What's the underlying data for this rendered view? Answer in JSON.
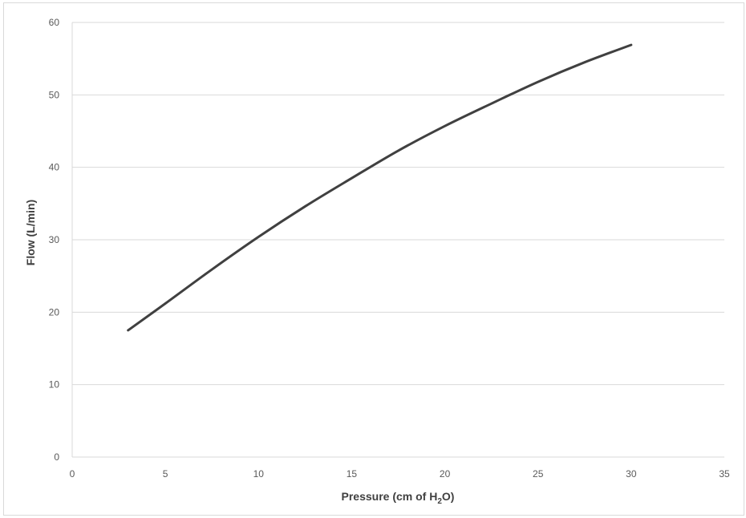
{
  "chart_data": {
    "type": "line",
    "xlabel": "Pressure (cm of H",
    "xlabel_sub": "2",
    "xlabel_end": "O)",
    "ylabel": "Flow (L/min)",
    "xlim": [
      0,
      35
    ],
    "ylim": [
      0,
      60
    ],
    "x_ticks": [
      0,
      5,
      10,
      15,
      20,
      25,
      30,
      35
    ],
    "y_ticks": [
      0,
      10,
      20,
      30,
      40,
      50,
      60
    ],
    "grid": "horizontal",
    "legend": "none",
    "series": [
      {
        "color": "#404040",
        "x": [
          3,
          5,
          7.5,
          10,
          12.5,
          15,
          17.5,
          20,
          22.5,
          25,
          27.5,
          30
        ],
        "y": [
          17.5,
          21.2,
          25.9,
          30.4,
          34.6,
          38.5,
          42.3,
          45.7,
          48.8,
          51.8,
          54.5,
          56.9
        ]
      }
    ]
  }
}
